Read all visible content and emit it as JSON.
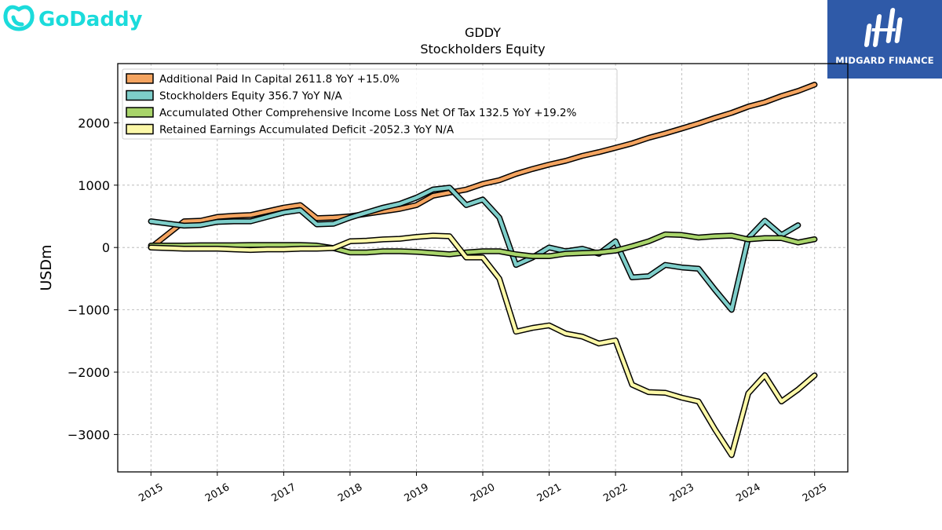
{
  "brand": {
    "left_logo": "GoDaddy",
    "right_logo": "MIDGARD FINANCE"
  },
  "colors": {
    "godaddy": "#1bdbdb",
    "midgard_bg": "#2f5aa8"
  },
  "chart_data": {
    "type": "line",
    "title": "GDDY",
    "subtitle": "Stockholders  Equity",
    "xlabel": "",
    "ylabel": "USDm",
    "xlim": [
      2014.5,
      2025.5
    ],
    "ylim": [
      -3600,
      2950
    ],
    "xticks": [
      2015,
      2016,
      2017,
      2018,
      2019,
      2020,
      2021,
      2022,
      2023,
      2024,
      2025
    ],
    "yticks": [
      2000,
      1000,
      0,
      -1000,
      -2000,
      -3000
    ],
    "ytick_labels": [
      "2000",
      "1000",
      "0",
      "−1000",
      "−2000",
      "−3000"
    ],
    "grid": true,
    "legend_position": "top-left",
    "series": [
      {
        "name": "Additional Paid In Capital  2611.8 YoY +15.0%",
        "color": "#f4a460",
        "x": [
          2015.0,
          2015.5,
          2015.75,
          2016.0,
          2016.25,
          2016.5,
          2016.75,
          2017.0,
          2017.25,
          2017.5,
          2017.75,
          2018.0,
          2018.25,
          2018.5,
          2018.75,
          2019.0,
          2019.25,
          2019.5,
          2019.75,
          2020.0,
          2020.25,
          2020.5,
          2020.75,
          2021.0,
          2021.25,
          2021.5,
          2021.75,
          2022.0,
          2022.25,
          2022.5,
          2022.75,
          2023.0,
          2023.25,
          2023.5,
          2023.75,
          2024.0,
          2024.25,
          2024.5,
          2024.75,
          2025.0
        ],
        "y": [
          0,
          420,
          430,
          490,
          510,
          520,
          580,
          640,
          680,
          470,
          480,
          500,
          540,
          580,
          620,
          680,
          830,
          880,
          930,
          1020,
          1080,
          1180,
          1260,
          1330,
          1390,
          1470,
          1530,
          1600,
          1670,
          1760,
          1830,
          1910,
          1990,
          2080,
          2160,
          2260,
          2330,
          2430,
          2510,
          2611.8
        ]
      },
      {
        "name": "Stockholders Equity  356.7 YoY N/A",
        "color": "#7ececa",
        "x": [
          2015.0,
          2015.5,
          2015.75,
          2016.0,
          2016.25,
          2016.5,
          2016.75,
          2017.0,
          2017.25,
          2017.5,
          2017.75,
          2018.0,
          2018.25,
          2018.5,
          2018.75,
          2019.0,
          2019.25,
          2019.5,
          2019.75,
          2020.0,
          2020.25,
          2020.5,
          2020.75,
          2021.0,
          2021.25,
          2021.5,
          2021.75,
          2022.0,
          2022.25,
          2022.5,
          2022.75,
          2023.0,
          2023.25,
          2023.5,
          2023.75,
          2024.0,
          2024.25,
          2024.5,
          2024.75
        ],
        "y": [
          420,
          350,
          360,
          410,
          420,
          420,
          490,
          560,
          600,
          370,
          380,
          480,
          560,
          640,
          700,
          800,
          930,
          960,
          680,
          770,
          480,
          -280,
          -160,
          0,
          -60,
          -20,
          -100,
          100,
          -480,
          -460,
          -280,
          -320,
          -340,
          -680,
          -1000,
          150,
          430,
          200,
          356.7
        ]
      },
      {
        "name": "Accumulated Other Comprehensive Income Loss Net Of Tax  132.5 YoY +19.2%",
        "color": "#a8d46a",
        "x": [
          2015.0,
          2015.5,
          2015.75,
          2016.0,
          2016.25,
          2016.5,
          2016.75,
          2017.0,
          2017.25,
          2017.5,
          2017.75,
          2018.0,
          2018.25,
          2018.5,
          2018.75,
          2019.0,
          2019.25,
          2019.5,
          2019.75,
          2020.0,
          2020.25,
          2020.5,
          2020.75,
          2021.0,
          2021.25,
          2021.5,
          2021.75,
          2022.0,
          2022.25,
          2022.5,
          2022.75,
          2023.0,
          2023.25,
          2023.5,
          2023.75,
          2024.0,
          2024.25,
          2024.5,
          2024.75,
          2025.0
        ],
        "y": [
          30,
          30,
          35,
          35,
          35,
          40,
          40,
          40,
          40,
          30,
          -10,
          -80,
          -80,
          -60,
          -60,
          -70,
          -90,
          -110,
          -80,
          -60,
          -60,
          -110,
          -140,
          -140,
          -100,
          -90,
          -80,
          -50,
          20,
          100,
          210,
          200,
          160,
          180,
          190,
          130,
          150,
          150,
          80,
          132.5
        ]
      },
      {
        "name": "Retained Earnings Accumulated Deficit  -2052.3 YoY N/A",
        "color": "#fcf8a8",
        "x": [
          2015.0,
          2015.5,
          2015.75,
          2016.0,
          2016.25,
          2016.5,
          2016.75,
          2017.0,
          2017.25,
          2017.5,
          2017.75,
          2018.0,
          2018.25,
          2018.5,
          2018.75,
          2019.0,
          2019.25,
          2019.5,
          2019.75,
          2020.0,
          2020.25,
          2020.5,
          2020.75,
          2021.0,
          2021.25,
          2021.5,
          2021.75,
          2022.0,
          2022.25,
          2022.5,
          2022.75,
          2023.0,
          2023.25,
          2023.5,
          2023.75,
          2024.0,
          2024.25,
          2024.5,
          2024.75,
          2025.0
        ],
        "y": [
          0,
          -20,
          -20,
          -20,
          -30,
          -40,
          -30,
          -30,
          -20,
          -20,
          -10,
          100,
          110,
          130,
          140,
          170,
          190,
          180,
          -160,
          -160,
          -500,
          -1350,
          -1290,
          -1250,
          -1380,
          -1430,
          -1540,
          -1490,
          -2200,
          -2320,
          -2330,
          -2410,
          -2470,
          -2920,
          -3330,
          -2340,
          -2050,
          -2470,
          -2280,
          -2052.3
        ]
      }
    ]
  }
}
